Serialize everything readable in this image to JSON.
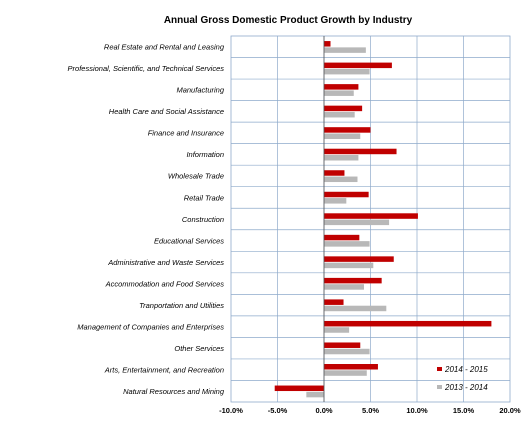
{
  "chart_data": {
    "type": "bar",
    "orientation": "horizontal",
    "title": "Annual  Gross Domestic Product Growth by Industry",
    "categories": [
      "Real Estate and Rental and Leasing",
      "Professional, Scientific, and Technical Services",
      "Manufacturing",
      "Health Care and Social Assistance",
      "Finance and Insurance",
      "Information",
      "Wholesale Trade",
      "Retail Trade",
      "Construction",
      "Educational Services",
      "Administrative and Waste Services",
      "Accommodation and Food Services",
      "Tranportation and Utilities",
      "Management of Companies and Enterprises",
      "Other Services",
      "Arts, Entertainment, and Recreation",
      "Natural Resources and Mining"
    ],
    "series": [
      {
        "name": "2014 - 2015",
        "color": "#c00000",
        "values": [
          0.7,
          7.3,
          3.7,
          4.1,
          5.0,
          7.8,
          2.2,
          4.8,
          10.1,
          3.8,
          7.5,
          6.2,
          2.1,
          18.0,
          3.9,
          5.8,
          -5.3
        ]
      },
      {
        "name": "2013 - 2014",
        "color": "#b8b8b8",
        "values": [
          4.5,
          4.9,
          3.2,
          3.3,
          3.9,
          3.7,
          3.6,
          2.4,
          7.0,
          4.9,
          5.3,
          4.3,
          6.7,
          2.7,
          4.9,
          4.6,
          -1.9
        ]
      }
    ],
    "xlim": [
      -10,
      20
    ],
    "xticks": [
      "-10.0%",
      "-5.0%",
      "0.0%",
      "5.0%",
      "10.0%",
      "15.0%",
      "20.0%"
    ],
    "grid": true,
    "legend_position": "bottom-right"
  }
}
